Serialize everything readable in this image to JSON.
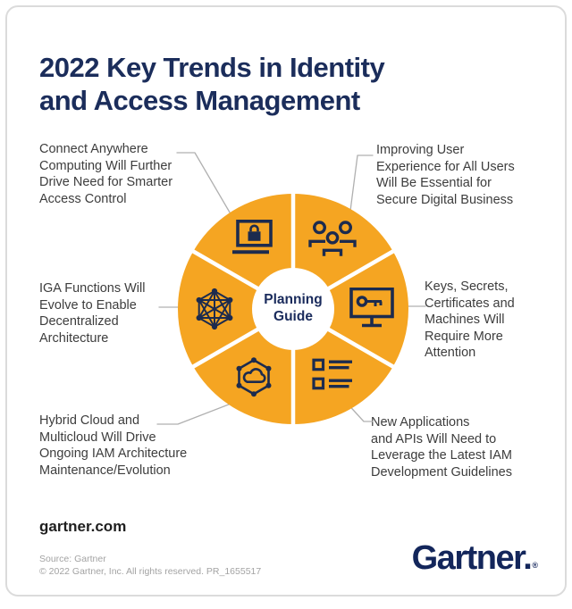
{
  "header": {
    "title_lines": [
      "2022 Key Trends in Identity",
      "and Access Management"
    ]
  },
  "callouts": [
    {
      "id": "connect-anywhere",
      "lines": [
        "Connect Anywhere",
        "Computing Will Further",
        "Drive Need for Smarter",
        "Access Control"
      ]
    },
    {
      "id": "improving-user-experience",
      "lines": [
        "Improving User",
        "Experience for All Users",
        "Will Be Essential for",
        "Secure Digital Business"
      ]
    },
    {
      "id": "iga-functions",
      "lines": [
        "IGA Functions Will",
        "Evolve to Enable",
        "Decentralized",
        "Architecture"
      ]
    },
    {
      "id": "keys-secrets",
      "lines": [
        "Keys, Secrets,",
        "Certificates and",
        "Machines Will",
        "Require More",
        "Attention"
      ]
    },
    {
      "id": "hybrid-cloud",
      "lines": [
        "Hybrid Cloud and",
        "Multicloud Will Drive",
        "Ongoing IAM Architecture",
        "Maintenance/Evolution"
      ]
    },
    {
      "id": "new-applications",
      "lines": [
        "New Applications",
        "and APIs Will Need to",
        "Leverage the Latest IAM",
        "Development Guidelines"
      ]
    }
  ],
  "wheel": {
    "center_label_lines": [
      "Planning",
      "Guide"
    ],
    "colors": {
      "segment_fill": "#F5A522",
      "icon_stroke": "#1C2B4E",
      "divider": "#FFFFFF",
      "center_text": "#1A2B5C"
    },
    "segments": [
      {
        "icon": "laptop-lock-icon",
        "angle_deg": 330
      },
      {
        "icon": "people-group-icon",
        "angle_deg": 30
      },
      {
        "icon": "monitor-key-icon",
        "angle_deg": 90
      },
      {
        "icon": "checklist-icon",
        "angle_deg": 150
      },
      {
        "icon": "cloud-network-icon",
        "angle_deg": 210
      },
      {
        "icon": "mesh-network-icon",
        "angle_deg": 270
      }
    ]
  },
  "footer": {
    "website": "gartner.com",
    "source": "Source: Gartner",
    "copyright": "© 2022 Gartner, Inc. All rights reserved. PR_1655517",
    "logo_text": "Gartner.",
    "logo_registered": "®"
  }
}
